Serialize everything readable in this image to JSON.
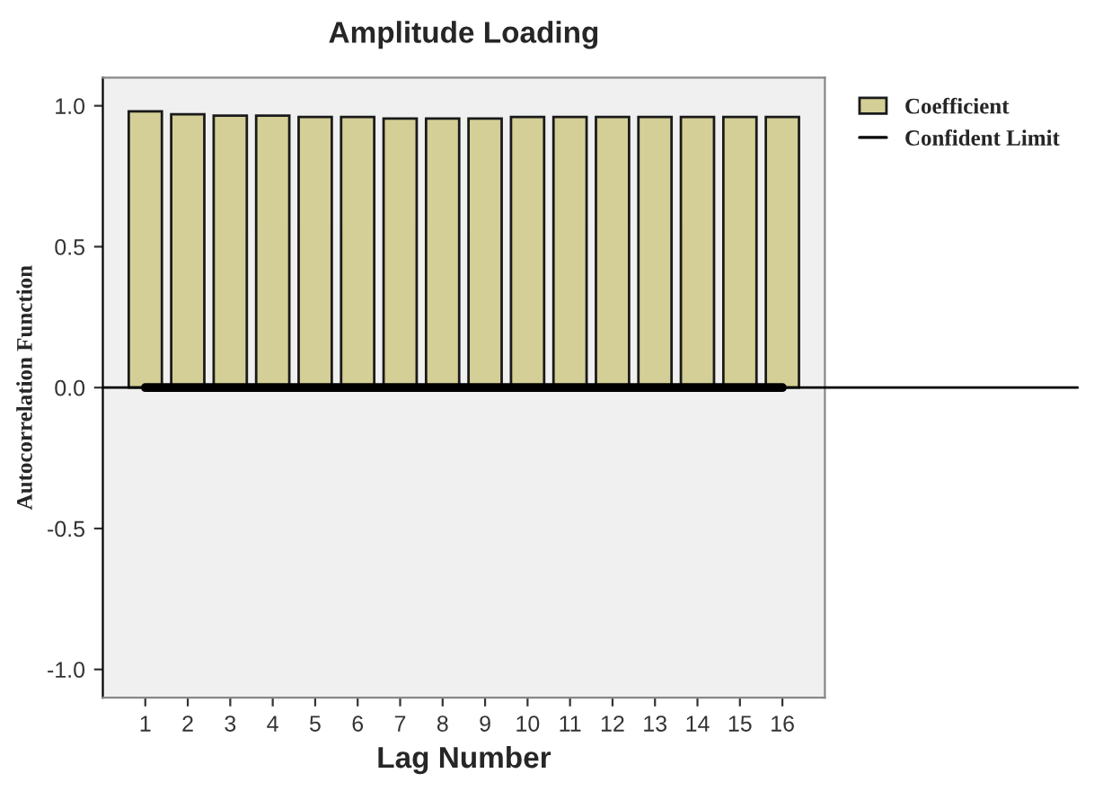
{
  "chart_data": {
    "type": "bar",
    "title": "Amplitude Loading",
    "xlabel": "Lag Number",
    "ylabel": "Autocorrelation Function",
    "categories": [
      "1",
      "2",
      "3",
      "4",
      "5",
      "6",
      "7",
      "8",
      "9",
      "10",
      "11",
      "12",
      "13",
      "14",
      "15",
      "16"
    ],
    "series": [
      {
        "name": "Coefficient",
        "color": "#d3cf96",
        "values": [
          0.98,
          0.97,
          0.965,
          0.965,
          0.96,
          0.96,
          0.955,
          0.955,
          0.955,
          0.96,
          0.96,
          0.96,
          0.96,
          0.96,
          0.96,
          0.96
        ]
      },
      {
        "name": "Confident Limit",
        "type": "step",
        "color": "#000000",
        "values": [
          0,
          0,
          0,
          0,
          0,
          0,
          0,
          0,
          0,
          0,
          0,
          0,
          0,
          0,
          0,
          0
        ]
      }
    ],
    "ylim": [
      -1.1,
      1.1
    ],
    "yticks": [
      {
        "value": -1.0,
        "label": "-1.0"
      },
      {
        "value": -0.5,
        "label": "-0.5"
      },
      {
        "value": 0.0,
        "label": "0.0"
      },
      {
        "value": 0.5,
        "label": "0.5"
      },
      {
        "value": 1.0,
        "label": "1.0"
      }
    ],
    "ref_lines": [
      {
        "axis": "y",
        "value": 0,
        "color": "#000000"
      }
    ],
    "grid": false,
    "legend": "top right"
  }
}
